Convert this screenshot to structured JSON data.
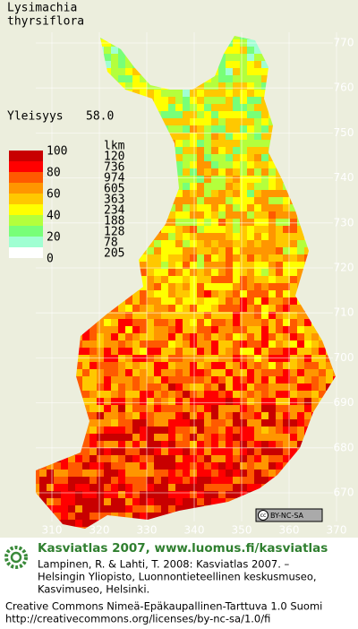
{
  "header": {
    "title_lines": [
      "Lysimachia",
      "thyrsiflora"
    ],
    "frequency_label": "Yleisyys",
    "frequency_value": "58.0"
  },
  "legend": {
    "scale_labels": [
      "100",
      "80",
      "60",
      "40",
      "20",
      "0"
    ],
    "count_header": "lkm",
    "counts": [
      "120",
      "736",
      "974",
      "605",
      "363",
      "234",
      "188",
      "128",
      "78",
      "205"
    ],
    "colors": [
      "#c80000",
      "#ff0000",
      "#ff5a00",
      "#ff9600",
      "#ffc800",
      "#ffff00",
      "#b4ff3c",
      "#78ff78",
      "#a0ffd2",
      "#ffffff"
    ]
  },
  "map": {
    "xticks": [
      310,
      320,
      330,
      340,
      350,
      360,
      370
    ],
    "yticks": [
      770,
      760,
      750,
      740,
      730,
      720,
      710,
      700,
      690,
      680,
      670
    ],
    "license_badge": "BY-NC-SA"
  },
  "footer": {
    "site": "Kasviatlas 2007, www.luomus.fi/kasviatlas",
    "citation": [
      "Lampinen, R. & Lahti, T. 2008: Kasviatlas 2007. –",
      "Helsingin Yliopisto, Luonnontieteellinen keskusmuseo,",
      "Kasvimuseo, Helsinki."
    ],
    "license": [
      "Creative Commons Nimeä-Epäkaupallinen-Tarttuva 1.0 Suomi",
      "http://creativecommons.org/licenses/by-nc-sa/1.0/fi"
    ]
  }
}
